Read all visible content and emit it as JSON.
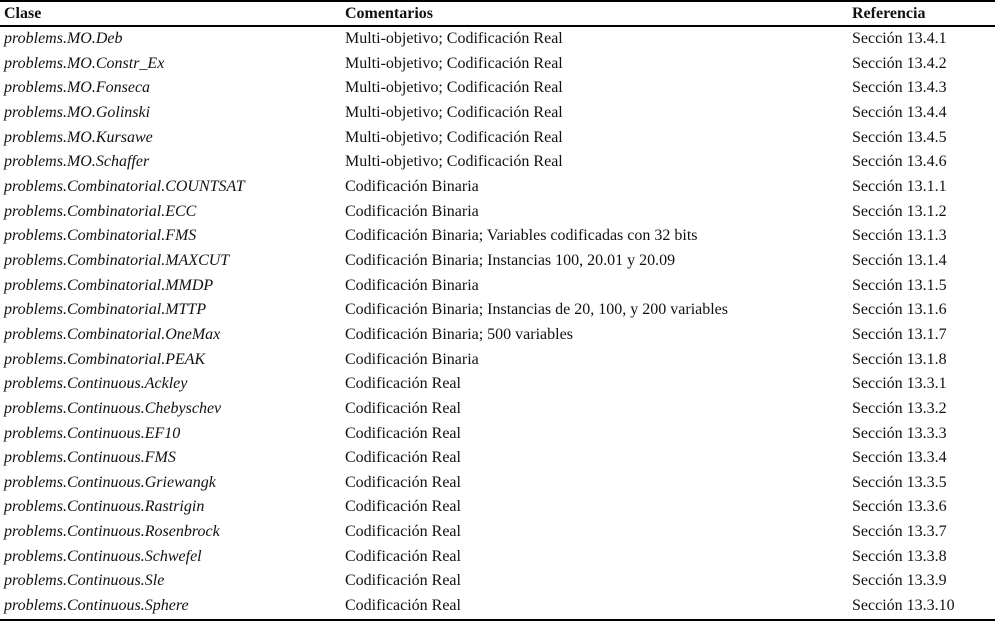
{
  "colors": {
    "background": "#ffffff",
    "text": "#111111",
    "rule": "#000000"
  },
  "table": {
    "columns": [
      {
        "key": "clase",
        "label": "Clase"
      },
      {
        "key": "comentarios",
        "label": "Comentarios"
      },
      {
        "key": "referencia",
        "label": "Referencia"
      }
    ],
    "rows": [
      [
        "problems.MO.Deb",
        "Multi-objetivo; Codificación Real",
        "Sección 13.4.1"
      ],
      [
        "problems.MO.Constr_Ex",
        "Multi-objetivo; Codificación Real",
        "Sección 13.4.2"
      ],
      [
        "problems.MO.Fonseca",
        "Multi-objetivo; Codificación Real",
        "Sección 13.4.3"
      ],
      [
        "problems.MO.Golinski",
        "Multi-objetivo; Codificación Real",
        "Sección 13.4.4"
      ],
      [
        "problems.MO.Kursawe",
        "Multi-objetivo; Codificación Real",
        "Sección 13.4.5"
      ],
      [
        "problems.MO.Schaffer",
        "Multi-objetivo; Codificación Real",
        "Sección 13.4.6"
      ],
      [
        "problems.Combinatorial.COUNTSAT",
        "Codificación Binaria",
        "Sección 13.1.1"
      ],
      [
        "problems.Combinatorial.ECC",
        "Codificación Binaria",
        "Sección 13.1.2"
      ],
      [
        "problems.Combinatorial.FMS",
        "Codificación Binaria; Variables codificadas con 32 bits",
        "Sección 13.1.3"
      ],
      [
        "problems.Combinatorial.MAXCUT",
        "Codificación Binaria; Instancias 100, 20.01 y 20.09",
        "Sección 13.1.4"
      ],
      [
        "problems.Combinatorial.MMDP",
        "Codificación Binaria",
        "Sección 13.1.5"
      ],
      [
        "problems.Combinatorial.MTTP",
        "Codificación Binaria; Instancias de 20, 100, y 200 variables",
        "Sección 13.1.6"
      ],
      [
        "problems.Combinatorial.OneMax",
        "Codificación Binaria; 500 variables",
        "Sección 13.1.7"
      ],
      [
        "problems.Combinatorial.PEAK",
        "Codificación Binaria",
        "Sección 13.1.8"
      ],
      [
        "problems.Continuous.Ackley",
        "Codificación Real",
        "Sección 13.3.1"
      ],
      [
        "problems.Continuous.Chebyschev",
        "Codificación Real",
        "Sección 13.3.2"
      ],
      [
        "problems.Continuous.EF10",
        "Codificación Real",
        "Sección 13.3.3"
      ],
      [
        "problems.Continuous.FMS",
        "Codificación Real",
        "Sección 13.3.4"
      ],
      [
        "problems.Continuous.Griewangk",
        "Codificación Real",
        "Sección 13.3.5"
      ],
      [
        "problems.Continuous.Rastrigin",
        "Codificación Real",
        "Sección 13.3.6"
      ],
      [
        "problems.Continuous.Rosenbrock",
        "Codificación Real",
        "Sección 13.3.7"
      ],
      [
        "problems.Continuous.Schwefel",
        "Codificación Real",
        "Sección 13.3.8"
      ],
      [
        "problems.Continuous.Sle",
        "Codificación Real",
        "Sección 13.3.9"
      ],
      [
        "problems.Continuous.Sphere",
        "Codificación Real",
        "Sección 13.3.10"
      ]
    ]
  }
}
